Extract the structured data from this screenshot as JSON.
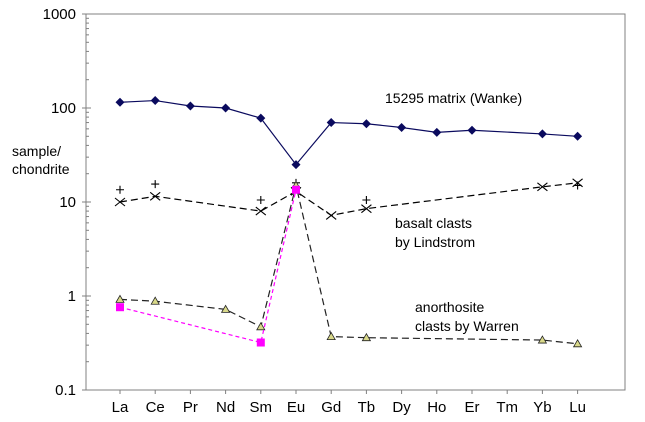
{
  "chart_data": {
    "type": "line",
    "ylabel_lines": [
      "sample/",
      "chondrite"
    ],
    "yscale": "log",
    "ylim": [
      0.1,
      1000
    ],
    "yticks": [
      "0.1",
      "1",
      "10",
      "100",
      "1000"
    ],
    "categories": [
      "La",
      "Ce",
      "Pr",
      "Nd",
      "Sm",
      "Eu",
      "Gd",
      "Tb",
      "Dy",
      "Ho",
      "Er",
      "Tm",
      "Yb",
      "Lu"
    ],
    "grid": false,
    "annotations": [
      {
        "text": "15295 matrix (Wanke)"
      },
      {
        "text": "basalt clasts"
      },
      {
        "text": "by Lindstrom"
      },
      {
        "text": "anorthosite"
      },
      {
        "text": "clasts by Warren"
      }
    ],
    "series": [
      {
        "key": "matrix",
        "color": "#0a0a5e",
        "marker": "diamond",
        "line": "solid",
        "x": [
          "La",
          "Ce",
          "Pr",
          "Nd",
          "Sm",
          "Eu",
          "Gd",
          "Tb",
          "Dy",
          "Ho",
          "Er",
          "Yb",
          "Lu"
        ],
        "values": [
          115,
          120,
          105,
          100,
          78,
          25,
          70,
          68,
          62,
          55,
          58,
          53,
          50
        ]
      },
      {
        "key": "basalt_x",
        "color": "#000000",
        "marker": "x",
        "line": "dashed",
        "x": [
          "La",
          "Ce",
          "Sm",
          "Eu",
          "Gd",
          "Tb",
          "Yb",
          "Lu"
        ],
        "values": [
          10,
          11.5,
          8,
          13,
          7.2,
          8.5,
          14.5,
          16
        ]
      },
      {
        "key": "basalt_plus",
        "color": "#000000",
        "marker": "plus",
        "line": "none",
        "x": [
          "La",
          "Ce",
          "Sm",
          "Eu",
          "Tb",
          "Lu"
        ],
        "values": [
          13.5,
          15.5,
          10.5,
          16,
          10.5,
          15
        ]
      },
      {
        "key": "anorthosite_tri",
        "color": "#222222",
        "marker": "triangle",
        "line": "dashed",
        "x": [
          "La",
          "Ce",
          "Nd",
          "Sm",
          "Eu",
          "Gd",
          "Tb",
          "Yb",
          "Lu"
        ],
        "values": [
          0.92,
          0.88,
          0.72,
          0.47,
          15,
          0.37,
          0.36,
          0.34,
          0.31
        ]
      },
      {
        "key": "anorthosite_sq",
        "color": "#ff00ff",
        "marker": "square",
        "line": "dashed",
        "x": [
          "La",
          "Sm",
          "Eu"
        ],
        "values": [
          0.76,
          0.32,
          13.5
        ]
      }
    ]
  }
}
